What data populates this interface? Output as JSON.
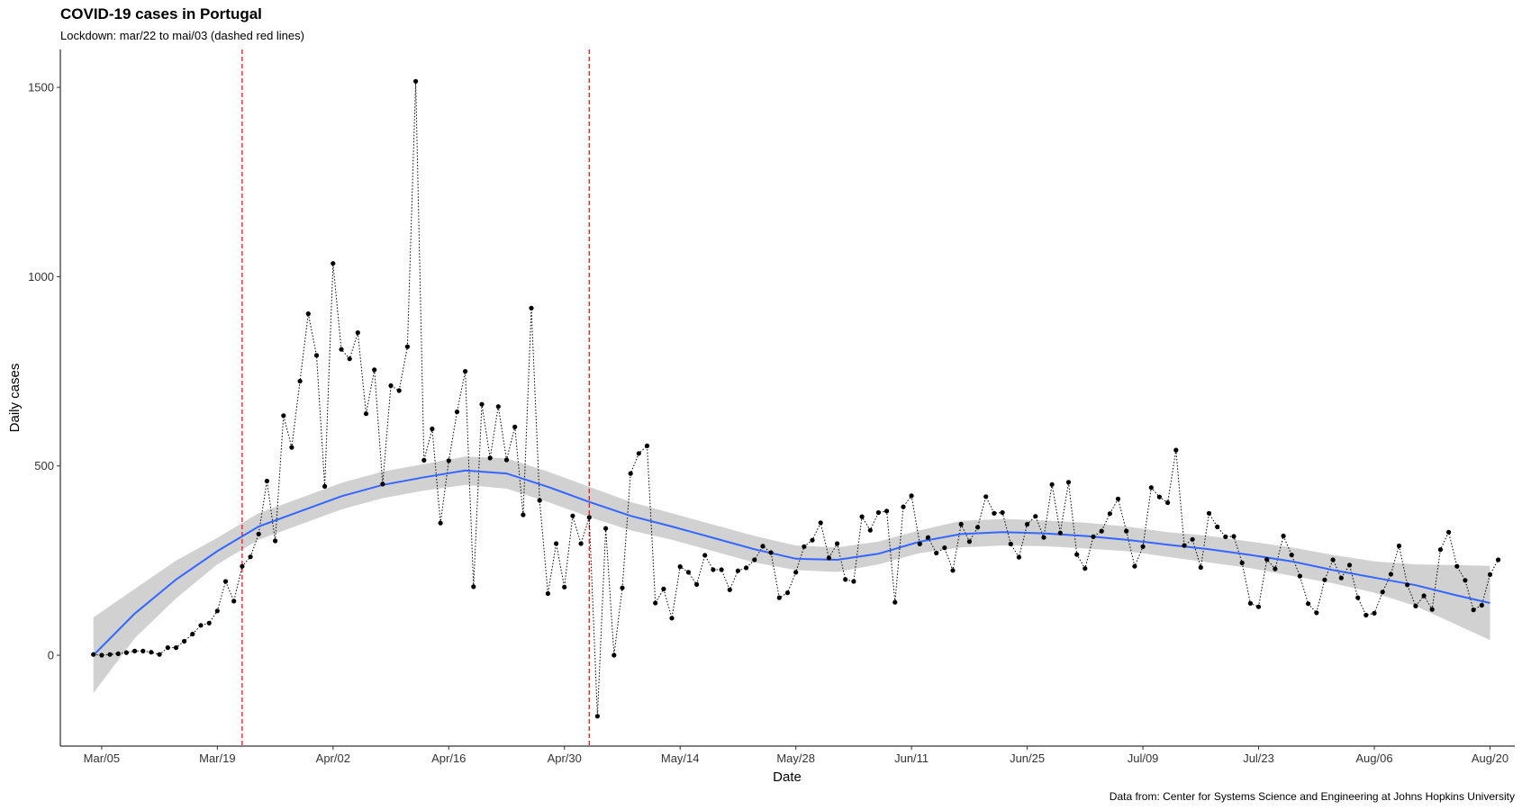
{
  "chart_data": {
    "type": "line",
    "title": "COVID-19 cases in Portugal",
    "subtitle": "Lockdown: mar/22 to mai/03 (dashed red lines)",
    "caption": "Data from: Center for Systems Science and Engineering at Johns Hopkins University",
    "xlabel": "Date",
    "ylabel": "Daily cases",
    "x_ticks": [
      "Mar/05",
      "Mar/19",
      "Apr/02",
      "Apr/16",
      "Apr/30",
      "May/14",
      "May/28",
      "Jun/11",
      "Jun/25",
      "Jul/09",
      "Jul/23",
      "Aug/06",
      "Aug/20"
    ],
    "y_ticks": [
      0,
      500,
      1000,
      1500
    ],
    "ylim": [
      -240,
      1600
    ],
    "x_start_date": "2020-03-04",
    "x_end_date": "2020-08-20",
    "xlim_days": [
      -4,
      172
    ],
    "lockdown_days": [
      18,
      60
    ],
    "colors": {
      "points": "#000000",
      "smooth": "#3366FF",
      "ribbon": "#CCCCCC",
      "lockdown": "#FF0000"
    },
    "series": [
      {
        "style": "points-dotted-line",
        "values": [
          2,
          0,
          2,
          4,
          7,
          11,
          11,
          8,
          2,
          20,
          20,
          37,
          56,
          79,
          85,
          117,
          195,
          143,
          235,
          260,
          320,
          460,
          302,
          633,
          549,
          724,
          902,
          792,
          446,
          1035,
          808,
          783,
          852,
          638,
          754,
          452,
          712,
          699,
          815,
          1516,
          515,
          598,
          349,
          514,
          643,
          750,
          181,
          663,
          521,
          657,
          516,
          603,
          371,
          917,
          409,
          163,
          295,
          180,
          368,
          295,
          364,
          -161,
          335,
          0,
          178,
          480,
          533,
          553,
          138,
          175,
          98,
          234,
          219,
          187,
          264,
          226,
          226,
          173,
          223,
          231,
          252,
          288,
          271,
          152,
          165,
          219,
          287,
          304,
          350,
          257,
          295,
          200,
          195,
          366,
          330,
          377,
          381,
          140,
          392,
          421,
          294,
          311,
          270,
          284,
          224,
          346,
          300,
          338,
          419,
          375,
          377,
          294,
          259,
          346,
          367,
          311,
          451,
          323,
          457,
          266,
          229,
          313,
          328,
          374,
          413,
          328,
          235,
          287,
          443,
          418,
          403,
          542,
          290,
          306,
          232,
          375,
          339,
          313,
          314,
          244,
          137,
          128,
          253,
          228,
          315,
          265,
          209,
          136,
          112,
          199,
          252,
          204,
          238,
          152,
          106,
          111,
          167,
          214,
          289,
          186,
          130,
          157,
          121,
          279,
          325,
          235,
          198,
          120,
          132,
          213,
          252
        ]
      },
      {
        "style": "smooth",
        "x": [
          0,
          5,
          10,
          15,
          20,
          25,
          30,
          35,
          40,
          45,
          50,
          55,
          60,
          65,
          70,
          75,
          80,
          85,
          90,
          95,
          100,
          105,
          110,
          115,
          120,
          125,
          130,
          135,
          140,
          145,
          150,
          155,
          160,
          165,
          169
        ],
        "values": [
          0,
          110,
          200,
          275,
          340,
          380,
          420,
          450,
          470,
          488,
          480,
          445,
          405,
          368,
          340,
          310,
          280,
          255,
          252,
          268,
          300,
          320,
          325,
          322,
          315,
          305,
          292,
          280,
          265,
          248,
          225,
          205,
          185,
          158,
          138
        ],
        "lower": [
          -100,
          45,
          150,
          240,
          305,
          345,
          385,
          415,
          435,
          450,
          440,
          405,
          365,
          330,
          305,
          275,
          245,
          225,
          220,
          240,
          270,
          285,
          290,
          288,
          282,
          275,
          260,
          245,
          230,
          210,
          190,
          165,
          130,
          80,
          40
        ],
        "upper": [
          100,
          175,
          250,
          310,
          375,
          415,
          455,
          485,
          505,
          525,
          520,
          485,
          445,
          405,
          375,
          345,
          315,
          290,
          285,
          300,
          330,
          355,
          360,
          356,
          350,
          340,
          325,
          315,
          300,
          285,
          265,
          248,
          240,
          238,
          236
        ]
      }
    ]
  }
}
